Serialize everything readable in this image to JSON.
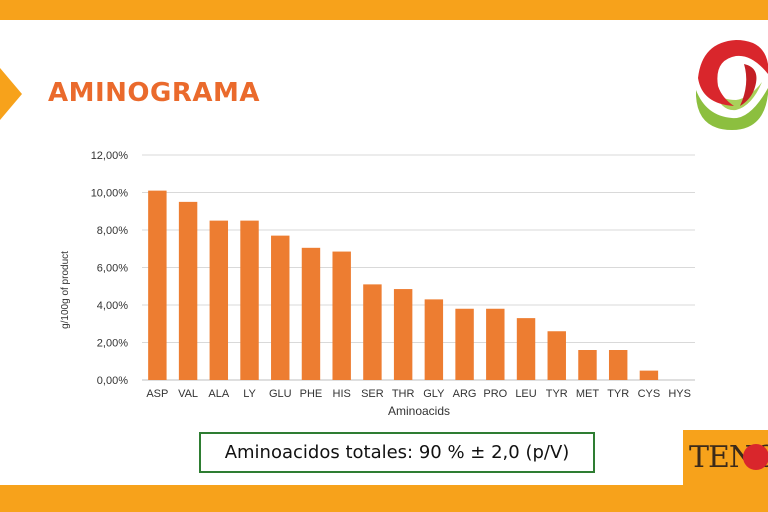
{
  "slide": {
    "title": "AMINOGRAMA",
    "totals_text": "Aminoacidos totales: 90 % ± 2,0 (p/V)",
    "brand_text": "TENCO"
  },
  "colors": {
    "accent_bar": "#f7a21b",
    "title": "#ea6a2c",
    "bar": "#ed7d31",
    "box_border": "#2e7d32",
    "logo_red": "#d9262c",
    "logo_green": "#8cbf3f"
  },
  "chart_data": {
    "type": "bar",
    "categories": [
      "ASP",
      "VAL",
      "ALA",
      "LY",
      "GLU",
      "PHE",
      "HIS",
      "SER",
      "THR",
      "GLY",
      "ARG",
      "PRO",
      "LEU",
      "TYR",
      "MET",
      "TYR",
      "CYS",
      "HYS"
    ],
    "values": [
      10.1,
      9.5,
      8.5,
      8.5,
      7.7,
      7.05,
      6.85,
      5.1,
      4.85,
      4.3,
      3.8,
      3.8,
      3.3,
      2.6,
      1.6,
      1.6,
      0.5,
      0
    ],
    "xlabel": "Aminoacids",
    "ylabel": "g/100g of product",
    "ylim": [
      0,
      12
    ],
    "yticks": [
      "0,00%",
      "2,00%",
      "4,00%",
      "6,00%",
      "8,00%",
      "10,00%",
      "12,00%"
    ],
    "grid": true
  }
}
